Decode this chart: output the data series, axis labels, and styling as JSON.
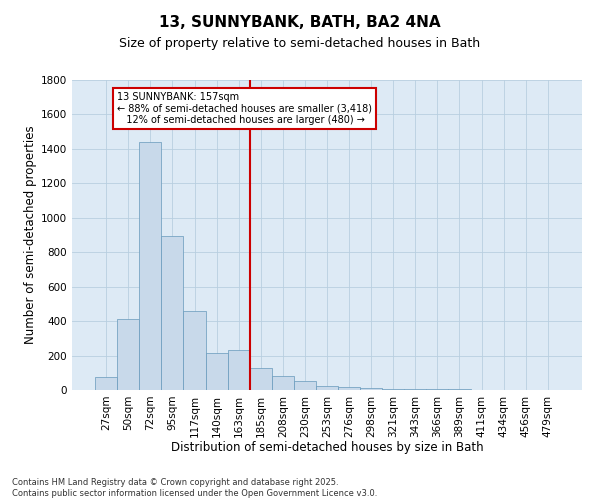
{
  "title": "13, SUNNYBANK, BATH, BA2 4NA",
  "subtitle": "Size of property relative to semi-detached houses in Bath",
  "xlabel": "Distribution of semi-detached houses by size in Bath",
  "ylabel": "Number of semi-detached properties",
  "categories": [
    "27sqm",
    "50sqm",
    "72sqm",
    "95sqm",
    "117sqm",
    "140sqm",
    "163sqm",
    "185sqm",
    "208sqm",
    "230sqm",
    "253sqm",
    "276sqm",
    "298sqm",
    "321sqm",
    "343sqm",
    "366sqm",
    "389sqm",
    "411sqm",
    "434sqm",
    "456sqm",
    "479sqm"
  ],
  "values": [
    75,
    415,
    1440,
    895,
    460,
    215,
    230,
    130,
    80,
    50,
    25,
    15,
    10,
    8,
    5,
    4,
    3,
    2,
    1,
    1,
    0
  ],
  "bar_color": "#c8d9ea",
  "bar_edge_color": "#6699bb",
  "grid_color": "#b8cfe0",
  "background_color": "#ddeaf5",
  "vline_x": 6.5,
  "vline_color": "#cc0000",
  "annotation_text": "13 SUNNYBANK: 157sqm\n← 88% of semi-detached houses are smaller (3,418)\n   12% of semi-detached houses are larger (480) →",
  "annotation_box_color": "#cc0000",
  "footer": "Contains HM Land Registry data © Crown copyright and database right 2025.\nContains public sector information licensed under the Open Government Licence v3.0.",
  "ylim": [
    0,
    1800
  ],
  "yticks": [
    0,
    200,
    400,
    600,
    800,
    1000,
    1200,
    1400,
    1600,
    1800
  ],
  "title_fontsize": 11,
  "subtitle_fontsize": 9,
  "tick_fontsize": 7.5,
  "label_fontsize": 8.5,
  "footer_fontsize": 6
}
